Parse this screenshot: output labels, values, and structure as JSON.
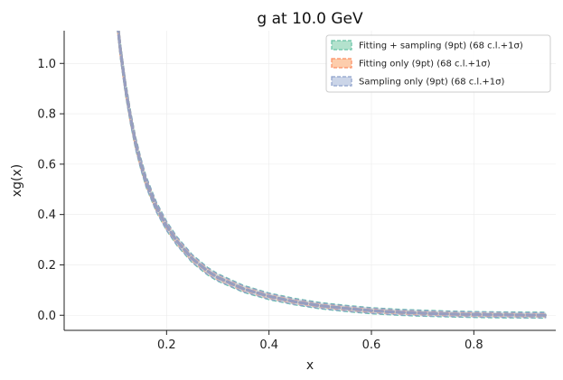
{
  "chart_data": {
    "type": "line",
    "title": "g at 10.0 GeV",
    "xlabel": "x",
    "ylabel": "xg(x)",
    "xlim": [
      0.0,
      0.96
    ],
    "ylim": [
      -0.06,
      1.13
    ],
    "xticks": [
      0.2,
      0.4,
      0.6,
      0.8
    ],
    "xtick_labels": [
      "0.2",
      "0.4",
      "0.6",
      "0.8"
    ],
    "yticks": [
      0.0,
      0.2,
      0.4,
      0.6,
      0.8,
      1.0
    ],
    "ytick_labels": [
      "0.0",
      "0.2",
      "0.4",
      "0.6",
      "0.8",
      "1.0"
    ],
    "grid": true,
    "legend_position": "top-right",
    "x": [
      0.1,
      0.11,
      0.12,
      0.13,
      0.14,
      0.15,
      0.16,
      0.18,
      0.2,
      0.22,
      0.25,
      0.28,
      0.3,
      0.35,
      0.4,
      0.45,
      0.5,
      0.55,
      0.6,
      0.65,
      0.7,
      0.75,
      0.8,
      0.85,
      0.9,
      0.94
    ],
    "series": [
      {
        "name": "Fitting + sampling (9pt) (68 c.l.+1σ)",
        "color": "#66c2a5",
        "fill": "#b3e2cd",
        "y": [
          1.24,
          1.05,
          0.9,
          0.78,
          0.68,
          0.6,
          0.53,
          0.43,
          0.355,
          0.295,
          0.225,
          0.175,
          0.15,
          0.105,
          0.075,
          0.054,
          0.038,
          0.027,
          0.018,
          0.012,
          0.008,
          0.005,
          0.003,
          0.0015,
          0.0007,
          0.0003
        ],
        "band": 0.012
      },
      {
        "name": "Fitting only (9pt) (68 c.l.+1σ)",
        "color": "#fc8d62",
        "fill": "#fdcdac",
        "y": [
          1.24,
          1.05,
          0.9,
          0.78,
          0.68,
          0.6,
          0.53,
          0.43,
          0.355,
          0.295,
          0.225,
          0.175,
          0.15,
          0.105,
          0.075,
          0.054,
          0.038,
          0.027,
          0.018,
          0.012,
          0.008,
          0.005,
          0.003,
          0.0015,
          0.0007,
          0.0003
        ],
        "band": 0.007
      },
      {
        "name": "Sampling only (9pt) (68 c.l.+1σ)",
        "color": "#8da0cb",
        "fill": "#cbd5e8",
        "y": [
          1.24,
          1.05,
          0.9,
          0.78,
          0.68,
          0.6,
          0.53,
          0.43,
          0.355,
          0.295,
          0.225,
          0.175,
          0.15,
          0.105,
          0.075,
          0.054,
          0.038,
          0.027,
          0.018,
          0.012,
          0.008,
          0.005,
          0.003,
          0.0015,
          0.0007,
          0.0003
        ],
        "band": 0.01
      }
    ]
  }
}
